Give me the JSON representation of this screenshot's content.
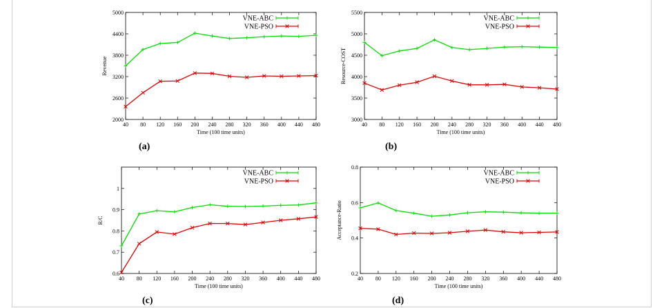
{
  "chart_data": [
    {
      "type": "line",
      "panel": "(a)",
      "xlabel": "Time (100 time units)",
      "ylabel": "Revenue",
      "x": [
        40,
        80,
        120,
        160,
        200,
        240,
        280,
        320,
        360,
        400,
        440,
        480
      ],
      "xlim": [
        40,
        480
      ],
      "ylim": [
        2000,
        5000
      ],
      "yticks": [
        2000,
        2600,
        3200,
        3800,
        4400,
        5000
      ],
      "legend": "top-right",
      "series": [
        {
          "name": "VNE-ABC",
          "color": "#00dd00",
          "marker": "plus",
          "values": [
            3500,
            3960,
            4130,
            4160,
            4420,
            4340,
            4270,
            4290,
            4320,
            4340,
            4330,
            4360
          ]
        },
        {
          "name": "VNE-PSO",
          "color": "#dd0000",
          "marker": "cross",
          "values": [
            2360,
            2750,
            3070,
            3080,
            3300,
            3290,
            3210,
            3180,
            3220,
            3210,
            3220,
            3230
          ]
        }
      ]
    },
    {
      "type": "line",
      "panel": "(b)",
      "xlabel": "Time (100 time units)",
      "ylabel": "Resource-COST",
      "x": [
        40,
        80,
        120,
        160,
        200,
        240,
        280,
        320,
        360,
        400,
        440,
        480
      ],
      "xlim": [
        40,
        480
      ],
      "ylim": [
        3000,
        5500
      ],
      "yticks": [
        3000,
        3500,
        4000,
        4500,
        5000,
        5500
      ],
      "legend": "top-right",
      "series": [
        {
          "name": "VNE-ABC",
          "color": "#00dd00",
          "marker": "plus",
          "values": [
            4800,
            4490,
            4600,
            4660,
            4860,
            4680,
            4630,
            4660,
            4690,
            4700,
            4690,
            4680
          ]
        },
        {
          "name": "VNE-PSO",
          "color": "#dd0000",
          "marker": "cross",
          "values": [
            3850,
            3690,
            3800,
            3870,
            4010,
            3900,
            3810,
            3810,
            3820,
            3760,
            3740,
            3710
          ]
        }
      ]
    },
    {
      "type": "line",
      "panel": "(c)",
      "xlabel": "Time (100 time units)",
      "ylabel": "R/C",
      "x": [
        40,
        80,
        120,
        160,
        200,
        240,
        280,
        320,
        360,
        400,
        440,
        480
      ],
      "xlim": [
        40,
        480
      ],
      "ylim": [
        0.6,
        1.1
      ],
      "yticks": [
        0.6,
        0.7,
        0.8,
        0.9,
        1
      ],
      "ytick_labels": [
        "0.6",
        "0.7",
        "0.8",
        "0.9",
        "1"
      ],
      "legend": "top-right",
      "series": [
        {
          "name": "VNE-ABC",
          "color": "#00dd00",
          "marker": "plus",
          "values": [
            0.73,
            0.88,
            0.895,
            0.89,
            0.91,
            0.923,
            0.916,
            0.915,
            0.917,
            0.92,
            0.922,
            0.932
          ]
        },
        {
          "name": "VNE-PSO",
          "color": "#dd0000",
          "marker": "cross",
          "values": [
            0.605,
            0.74,
            0.795,
            0.785,
            0.815,
            0.835,
            0.835,
            0.83,
            0.84,
            0.85,
            0.857,
            0.866
          ]
        }
      ]
    },
    {
      "type": "line",
      "panel": "(d)",
      "xlabel": "Time (100 time units)",
      "ylabel": "Acceptance-Ratio",
      "x": [
        40,
        80,
        120,
        160,
        200,
        240,
        280,
        320,
        360,
        400,
        440,
        480
      ],
      "xlim": [
        40,
        480
      ],
      "ylim": [
        0.2,
        0.8
      ],
      "yticks": [
        0.2,
        0.4,
        0.6,
        0.8
      ],
      "ytick_labels": [
        "0.2",
        "0.4",
        "0.6",
        "0.8"
      ],
      "legend": "top-right",
      "series": [
        {
          "name": "VNE-ABC",
          "color": "#00dd00",
          "marker": "plus",
          "values": [
            0.57,
            0.598,
            0.555,
            0.54,
            0.523,
            0.53,
            0.543,
            0.548,
            0.546,
            0.542,
            0.54,
            0.54
          ]
        },
        {
          "name": "VNE-PSO",
          "color": "#dd0000",
          "marker": "cross",
          "values": [
            0.455,
            0.45,
            0.42,
            0.428,
            0.426,
            0.43,
            0.438,
            0.445,
            0.435,
            0.43,
            0.432,
            0.434
          ]
        }
      ]
    }
  ]
}
